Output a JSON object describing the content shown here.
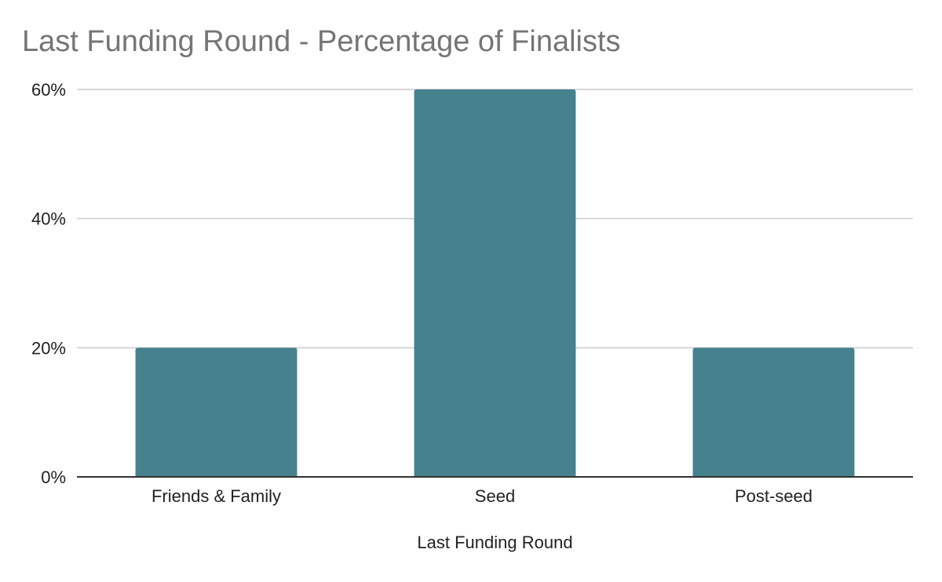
{
  "chart_data": {
    "type": "bar",
    "title": "Last Funding Round - Percentage of Finalists",
    "xlabel": "Last Funding Round",
    "ylabel": "",
    "categories": [
      "Friends & Family",
      "Seed",
      "Post-seed"
    ],
    "values": [
      20,
      60,
      20
    ],
    "ylim": [
      0,
      60
    ],
    "yticks": [
      0,
      20,
      40,
      60
    ],
    "ytick_suffix": "%",
    "grid": true,
    "legend": "none",
    "bar_color": "#46818e",
    "gridline_color": "#cccccc",
    "axis_color": "#333333"
  }
}
